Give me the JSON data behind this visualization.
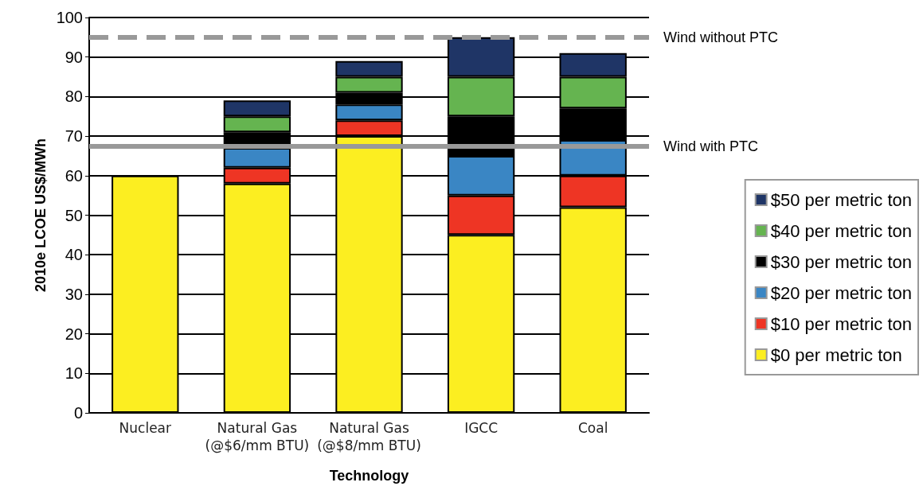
{
  "chart_data": {
    "type": "bar",
    "stacked": true,
    "xlabel": "Technology",
    "ylabel": "2010e LCOE US$/MWh",
    "categories": [
      "Nuclear",
      "Natural Gas\n(@$6/mm BTU)",
      "Natural Gas\n(@$8/mm BTU)",
      "IGCC",
      "Coal"
    ],
    "series": [
      {
        "name": "$0 per metric ton",
        "color": "#fcee21",
        "values": [
          60,
          58,
          70,
          45,
          52
        ]
      },
      {
        "name": "$10 per metric ton",
        "color": "#ee3524",
        "values": [
          null,
          4,
          4,
          10,
          8
        ]
      },
      {
        "name": "$20 per metric ton",
        "color": "#3a86c4",
        "values": [
          null,
          5,
          4,
          10,
          9
        ]
      },
      {
        "name": "$30 per metric ton",
        "color": "#000000",
        "values": [
          null,
          4,
          3,
          10,
          8
        ]
      },
      {
        "name": "$40 per metric ton",
        "color": "#65b450",
        "values": [
          null,
          4,
          4,
          10,
          8
        ]
      },
      {
        "name": "$50 per metric ton",
        "color": "#1f3566",
        "values": [
          null,
          4,
          4,
          10,
          6
        ]
      }
    ],
    "ylim": [
      0,
      100
    ],
    "yticks": [
      0,
      10,
      20,
      30,
      40,
      50,
      60,
      70,
      80,
      90,
      100
    ],
    "grid": "y",
    "legend": "right",
    "ref_lines": [
      {
        "axis": "y",
        "value": 95,
        "label": "Wind without PTC",
        "color": "#999999",
        "line_style": "dashed"
      },
      {
        "axis": "y",
        "value": 67.5,
        "label": "Wind with PTC",
        "color": "#999999",
        "line_style": "solid"
      }
    ]
  }
}
